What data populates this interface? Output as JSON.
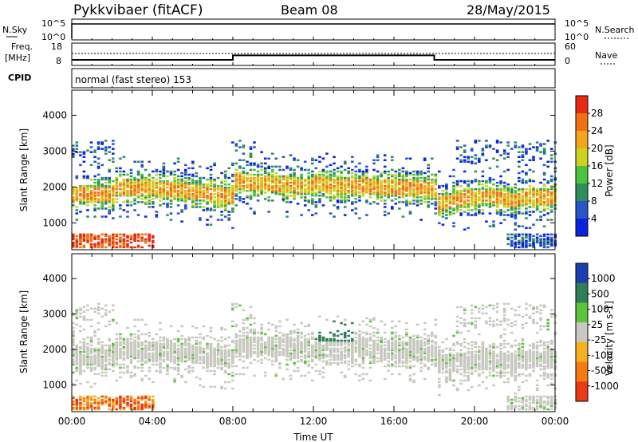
{
  "header": {
    "station": "Pykkvibaer (fitACF)",
    "beam": "Beam 08",
    "date": "28/May/2015"
  },
  "strips": {
    "nsky": {
      "label": "N.Sky",
      "ticks": [
        "10^5",
        "10^0"
      ],
      "right_label": "N.Search",
      "right_ticks": [
        "10^5",
        "10^0"
      ]
    },
    "freq": {
      "label_line1": "Freq.",
      "label_line2": "[MHz]",
      "ticks": [
        "18",
        "8"
      ],
      "right_label": "Nave",
      "right_ticks": [
        "60",
        "0"
      ],
      "freq_steps": [
        [
          0,
          10.5
        ],
        [
          8.0,
          12.5
        ],
        [
          18.0,
          10.5
        ],
        [
          24,
          10.5
        ]
      ]
    },
    "cpid": {
      "label": "CPID",
      "text": "normal (fast stereo) 153"
    }
  },
  "chart_data": [
    {
      "type": "heatmap",
      "name": "power-panel",
      "xlabel": "",
      "ylabel": "Slant Range [km]",
      "xlim": [
        0,
        24
      ],
      "ylim": [
        250,
        4700
      ],
      "y_ticks": [
        "4000",
        "3000",
        "2000",
        "1000"
      ],
      "y_tick_values": [
        4000,
        3000,
        2000,
        1000
      ],
      "colorbar": {
        "label": "Power [dB]",
        "ticks": [
          "28",
          "24",
          "20",
          "16",
          "12",
          "8",
          "4"
        ],
        "range": [
          0,
          32
        ]
      },
      "colors": [
        "#0a22e0",
        "#2a55c8",
        "#2f8f5a",
        "#49c43c",
        "#ccd21e",
        "#f3a51d",
        "#f07012",
        "#e82a12"
      ]
    },
    {
      "type": "heatmap",
      "name": "velocity-panel",
      "xlabel": "Time UT",
      "ylabel": "Slant Range [km]",
      "xlim": [
        0,
        24
      ],
      "ylim": [
        250,
        4700
      ],
      "x_ticks": [
        "00:00",
        "04:00",
        "08:00",
        "12:00",
        "16:00",
        "20:00",
        "00:00"
      ],
      "x_tick_values": [
        0,
        4,
        8,
        12,
        16,
        20,
        24
      ],
      "y_ticks": [
        "4000",
        "3000",
        "2000",
        "1000"
      ],
      "y_tick_values": [
        4000,
        3000,
        2000,
        1000
      ],
      "colorbar": {
        "label": "Velocity [m s-1]",
        "ticks": [
          "1000",
          "500",
          "100",
          "25",
          "-25",
          "-100",
          "-500",
          "-1000"
        ]
      },
      "colors": [
        "#1b3fb0",
        "#2f7e56",
        "#5ac33a",
        "#c8c8c0",
        "#f7b01f",
        "#f57a12",
        "#e83a14"
      ]
    }
  ]
}
